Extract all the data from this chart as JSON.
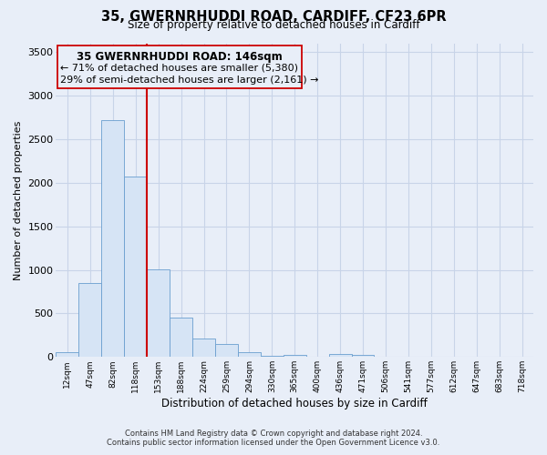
{
  "title": "35, GWERNRHUDDI ROAD, CARDIFF, CF23 6PR",
  "subtitle": "Size of property relative to detached houses in Cardiff",
  "xlabel": "Distribution of detached houses by size in Cardiff",
  "ylabel": "Number of detached properties",
  "bar_labels": [
    "12sqm",
    "47sqm",
    "82sqm",
    "118sqm",
    "153sqm",
    "188sqm",
    "224sqm",
    "259sqm",
    "294sqm",
    "330sqm",
    "365sqm",
    "400sqm",
    "436sqm",
    "471sqm",
    "506sqm",
    "541sqm",
    "577sqm",
    "612sqm",
    "647sqm",
    "683sqm",
    "718sqm"
  ],
  "bar_values": [
    55,
    850,
    2720,
    2070,
    1010,
    455,
    215,
    145,
    55,
    15,
    20,
    5,
    30,
    25,
    0,
    0,
    0,
    0,
    0,
    0,
    0
  ],
  "bar_color": "#d6e4f5",
  "bar_edge_color": "#6a9ecf",
  "vline_color": "#cc0000",
  "ylim": [
    0,
    3600
  ],
  "yticks": [
    0,
    500,
    1000,
    1500,
    2000,
    2500,
    3000,
    3500
  ],
  "annotation_title": "35 GWERNRHUDDI ROAD: 146sqm",
  "annotation_line1": "← 71% of detached houses are smaller (5,380)",
  "annotation_line2": "29% of semi-detached houses are larger (2,161) →",
  "footnote1": "Contains HM Land Registry data © Crown copyright and database right 2024.",
  "footnote2": "Contains public sector information licensed under the Open Government Licence v3.0.",
  "bg_color": "#e8eef8",
  "grid_color": "#c8d4e8"
}
